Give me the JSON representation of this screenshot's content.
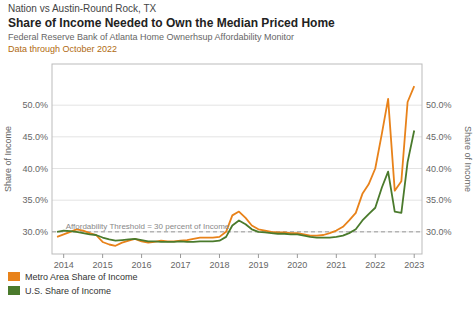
{
  "chart_data": {
    "type": "line",
    "pretitle": "Nation vs Austin-Round Rock, TX",
    "title": "Share of Income Needed to Own the Median Priced Home",
    "subtitle": "Federal Reserve Bank of Atlanta Home Ownerhsup Affordability Monitor",
    "note": "Data through October 2022",
    "ylabel": "Share of Income",
    "y2label": "Share of Income",
    "annotations": [
      {
        "text": "Affordability Threshold = 30 percent of Income",
        "y": 0.3
      }
    ],
    "xlim": [
      2013.7,
      2023.2
    ],
    "xticks": [
      2014,
      2015,
      2016,
      2017,
      2018,
      2019,
      2020,
      2021,
      2022,
      2023
    ],
    "ylim": [
      0.265,
      0.565
    ],
    "yticks": [
      {
        "value": 0.3,
        "label": "30.0%"
      },
      {
        "value": 0.35,
        "label": "35.0%"
      },
      {
        "value": 0.4,
        "label": "40.0%"
      },
      {
        "value": 0.45,
        "label": "45.0%"
      },
      {
        "value": 0.5,
        "label": "50.0%"
      }
    ],
    "y2lim": [
      0.265,
      0.565
    ],
    "y2ticks": [
      {
        "value": 0.3,
        "label": "30.0%"
      },
      {
        "value": 0.35,
        "label": "35.0%"
      },
      {
        "value": 0.4,
        "label": "40.0%"
      },
      {
        "value": 0.45,
        "label": "45.0%"
      },
      {
        "value": 0.5,
        "label": "50.0%"
      }
    ],
    "grid": true,
    "legend": "bottom",
    "x": [
      2013.83,
      2014.0,
      2014.17,
      2014.33,
      2014.5,
      2014.67,
      2014.83,
      2015.0,
      2015.17,
      2015.33,
      2015.5,
      2015.67,
      2015.83,
      2016.0,
      2016.17,
      2016.33,
      2016.5,
      2016.67,
      2016.83,
      2017.0,
      2017.17,
      2017.33,
      2017.5,
      2017.67,
      2017.83,
      2018.0,
      2018.17,
      2018.33,
      2018.5,
      2018.67,
      2018.83,
      2019.0,
      2019.17,
      2019.33,
      2019.5,
      2019.67,
      2019.83,
      2020.0,
      2020.17,
      2020.33,
      2020.5,
      2020.67,
      2020.83,
      2021.0,
      2021.17,
      2021.33,
      2021.5,
      2021.67,
      2021.83,
      2022.0,
      2022.17,
      2022.33,
      2022.5,
      2022.67,
      2022.83,
      2023.0
    ],
    "series": [
      {
        "name": "Metro Area Share of Income",
        "color": "#E8821A",
        "values": [
          0.292,
          0.296,
          0.3,
          0.304,
          0.302,
          0.298,
          0.295,
          0.284,
          0.28,
          0.278,
          0.283,
          0.286,
          0.289,
          0.285,
          0.283,
          0.284,
          0.286,
          0.285,
          0.285,
          0.286,
          0.287,
          0.289,
          0.291,
          0.291,
          0.291,
          0.292,
          0.3,
          0.326,
          0.332,
          0.322,
          0.31,
          0.304,
          0.302,
          0.3,
          0.299,
          0.299,
          0.298,
          0.298,
          0.296,
          0.294,
          0.294,
          0.295,
          0.298,
          0.302,
          0.308,
          0.318,
          0.33,
          0.36,
          0.375,
          0.4,
          0.455,
          0.51,
          0.365,
          0.38,
          0.505,
          0.53
        ]
      },
      {
        "name": "U.S. Share of Income",
        "color": "#4A7A2C",
        "values": [
          0.3,
          0.302,
          0.301,
          0.3,
          0.298,
          0.296,
          0.295,
          0.291,
          0.288,
          0.286,
          0.287,
          0.288,
          0.289,
          0.287,
          0.285,
          0.285,
          0.284,
          0.284,
          0.284,
          0.285,
          0.284,
          0.284,
          0.285,
          0.285,
          0.285,
          0.286,
          0.292,
          0.31,
          0.318,
          0.312,
          0.304,
          0.3,
          0.299,
          0.298,
          0.297,
          0.297,
          0.296,
          0.296,
          0.294,
          0.292,
          0.291,
          0.291,
          0.291,
          0.292,
          0.294,
          0.298,
          0.304,
          0.318,
          0.328,
          0.338,
          0.37,
          0.395,
          0.332,
          0.33,
          0.41,
          0.46
        ]
      }
    ]
  }
}
